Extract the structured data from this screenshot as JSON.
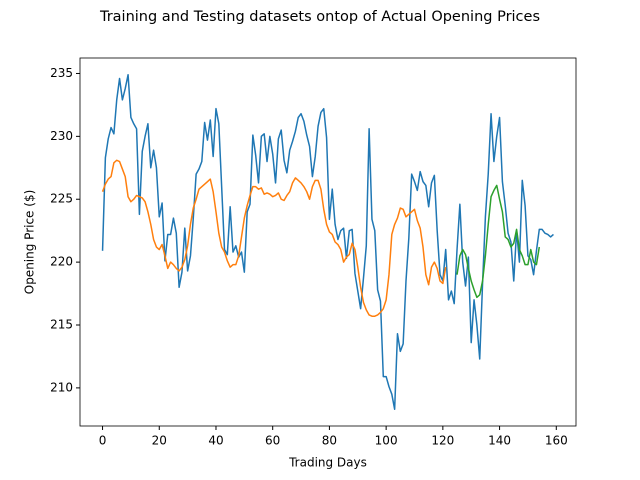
{
  "chart_data": {
    "type": "line",
    "title": "Training and Testing datasets ontop of Actual Opening Prices",
    "x_label": "Trading Days",
    "y_label": "Opening Price ($)",
    "x": [
      0,
      1,
      2,
      3,
      4,
      5,
      6,
      7,
      8,
      9,
      10,
      11,
      12,
      13,
      14,
      15,
      16,
      17,
      18,
      19,
      20,
      21,
      22,
      23,
      24,
      25,
      26,
      27,
      28,
      29,
      30,
      31,
      32,
      33,
      34,
      35,
      36,
      37,
      38,
      39,
      40,
      41,
      42,
      43,
      44,
      45,
      46,
      47,
      48,
      49,
      50,
      51,
      52,
      53,
      54,
      55,
      56,
      57,
      58,
      59,
      60,
      61,
      62,
      63,
      64,
      65,
      66,
      67,
      68,
      69,
      70,
      71,
      72,
      73,
      74,
      75,
      76,
      77,
      78,
      79,
      80,
      81,
      82,
      83,
      84,
      85,
      86,
      87,
      88,
      89,
      90,
      91,
      92,
      93,
      94,
      95,
      96,
      97,
      98,
      99,
      100,
      101,
      102,
      103,
      104,
      105,
      106,
      107,
      108,
      109,
      110,
      111,
      112,
      113,
      114,
      115,
      116,
      117,
      118,
      119,
      120,
      121,
      122,
      123,
      124,
      125,
      126,
      127,
      128,
      129,
      130,
      131,
      132,
      133,
      134,
      135,
      136,
      137,
      138,
      139,
      140,
      141,
      142,
      143,
      144,
      145,
      146,
      147,
      148,
      149,
      150,
      151,
      152,
      153,
      154,
      155,
      156,
      157,
      158,
      159
    ],
    "series": [
      {
        "color": "#1f77b4",
        "values": [
          220.9,
          228.3,
          229.8,
          230.7,
          230.2,
          232.9,
          234.6,
          232.9,
          233.8,
          234.9,
          231.5,
          231.0,
          230.6,
          223.8,
          228.8,
          230.0,
          231.0,
          227.5,
          228.9,
          227.5,
          223.6,
          224.7,
          220.1,
          222.2,
          222.2,
          223.5,
          222.3,
          218.0,
          219.2,
          222.7,
          219.3,
          220.5,
          223.5,
          227.0,
          227.4,
          228.0,
          231.1,
          229.7,
          231.3,
          228.4,
          232.2,
          231.0,
          226.0,
          221.0,
          220.6,
          224.4,
          220.8,
          221.3,
          220.4,
          220.8,
          219.2,
          224.0,
          224.6,
          230.1,
          228.5,
          226.3,
          230.0,
          230.2,
          228.0,
          230.0,
          228.6,
          226.3,
          229.8,
          230.5,
          228.1,
          227.1,
          228.9,
          229.6,
          230.4,
          231.5,
          231.8,
          231.2,
          230.1,
          229.2,
          226.8,
          228.4,
          230.8,
          231.9,
          232.2,
          229.9,
          223.4,
          225.8,
          223.0,
          221.8,
          222.5,
          222.7,
          220.3,
          222.5,
          222.6,
          219.1,
          217.7,
          216.3,
          218.7,
          221.3,
          230.6,
          223.4,
          222.5,
          217.8,
          216.9,
          210.9,
          210.9,
          210.1,
          209.5,
          208.3,
          214.3,
          212.9,
          213.5,
          218.5,
          221.9,
          227.0,
          226.4,
          225.7,
          227.2,
          226.4,
          226.1,
          224.4,
          226.3,
          226.9,
          222.5,
          219.0,
          218.5,
          221.0,
          217.0,
          217.7,
          216.7,
          221.0,
          224.6,
          220.0,
          218.1,
          220.4,
          213.6,
          217.0,
          215.0,
          212.3,
          218.3,
          223.6,
          227.0,
          231.8,
          228.0,
          230.0,
          231.5,
          226.4,
          224.5,
          222.3,
          221.6,
          218.5,
          222.5,
          220.0,
          226.5,
          224.5,
          220.5,
          220.2,
          219.0,
          220.9,
          222.6,
          222.6,
          222.3,
          222.2,
          222.0,
          222.2
        ]
      },
      {
        "color": "#ff7f0e",
        "values": [
          225.6,
          226.2,
          226.6,
          226.8,
          227.9,
          228.1,
          228.0,
          227.4,
          226.8,
          225.2,
          224.8,
          225.0,
          225.3,
          225.2,
          225.1,
          224.8,
          224.0,
          223.0,
          221.8,
          221.2,
          221.0,
          221.4,
          220.5,
          219.5,
          220.0,
          219.8,
          219.5,
          219.3,
          219.6,
          220.2,
          221.3,
          223.0,
          224.3,
          225.0,
          225.8,
          226.0,
          226.2,
          226.4,
          226.6,
          225.6,
          224.0,
          222.3,
          221.2,
          220.8,
          220.1,
          219.6,
          219.8,
          219.8,
          220.5,
          222.0,
          223.5,
          224.5,
          225.3,
          226.0,
          226.0,
          225.8,
          225.9,
          225.4,
          225.5,
          225.4,
          225.2,
          225.3,
          225.5,
          225.0,
          224.9,
          225.3,
          225.6,
          226.3,
          226.7,
          226.5,
          226.3,
          226.0,
          225.6,
          225.0,
          226.0,
          226.5,
          226.5,
          225.8,
          224.2,
          223.0,
          222.4,
          222.2,
          221.6,
          221.4,
          221.0,
          220.0,
          220.4,
          220.6,
          221.5,
          221.0,
          219.6,
          218.0,
          216.8,
          216.2,
          215.8,
          215.7,
          215.7,
          215.8,
          216.0,
          216.3,
          217.0,
          219.0,
          222.2,
          223.0,
          223.5,
          224.3,
          224.2,
          223.6,
          223.8,
          224.0,
          224.2,
          223.3,
          222.7,
          221.2,
          219.0,
          218.2,
          219.6,
          220.0,
          219.5,
          218.5,
          218.3,
          219.6,
          null,
          null,
          null,
          null,
          null,
          null,
          null,
          null,
          null,
          null,
          null,
          null,
          null,
          null,
          null,
          null,
          null,
          null,
          null,
          null,
          null,
          null,
          null,
          null,
          null,
          null,
          null,
          null,
          null,
          null,
          null,
          null,
          null,
          null,
          null,
          null,
          null,
          null
        ]
      },
      {
        "color": "#2ca02c",
        "values": [
          null,
          null,
          null,
          null,
          null,
          null,
          null,
          null,
          null,
          null,
          null,
          null,
          null,
          null,
          null,
          null,
          null,
          null,
          null,
          null,
          null,
          null,
          null,
          null,
          null,
          null,
          null,
          null,
          null,
          null,
          null,
          null,
          null,
          null,
          null,
          null,
          null,
          null,
          null,
          null,
          null,
          null,
          null,
          null,
          null,
          null,
          null,
          null,
          null,
          null,
          null,
          null,
          null,
          null,
          null,
          null,
          null,
          null,
          null,
          null,
          null,
          null,
          null,
          null,
          null,
          null,
          null,
          null,
          null,
          null,
          null,
          null,
          null,
          null,
          null,
          null,
          null,
          null,
          null,
          null,
          null,
          null,
          null,
          null,
          null,
          null,
          null,
          null,
          null,
          null,
          null,
          null,
          null,
          null,
          null,
          null,
          null,
          null,
          null,
          null,
          null,
          null,
          null,
          null,
          null,
          null,
          null,
          null,
          null,
          null,
          null,
          null,
          null,
          null,
          null,
          null,
          null,
          null,
          null,
          null,
          null,
          null,
          null,
          null,
          null,
          219.0,
          220.5,
          221.0,
          220.6,
          219.5,
          218.5,
          217.8,
          217.2,
          217.4,
          218.5,
          220.5,
          223.0,
          225.2,
          225.7,
          226.1,
          225.0,
          224.0,
          222.0,
          221.8,
          221.2,
          221.5,
          222.6,
          221.0,
          220.5,
          219.8,
          219.8,
          221.0,
          220.0,
          219.8,
          221.2,
          null,
          null,
          null,
          null,
          null
        ]
      }
    ],
    "xlim": [
      -7.95,
      166.95
    ],
    "xticks": [
      0,
      20,
      40,
      60,
      80,
      100,
      120,
      140,
      160
    ],
    "ylim": [
      206.97,
      236.23
    ],
    "yticks": [
      210,
      215,
      220,
      225,
      230,
      235
    ],
    "grid": false
  }
}
